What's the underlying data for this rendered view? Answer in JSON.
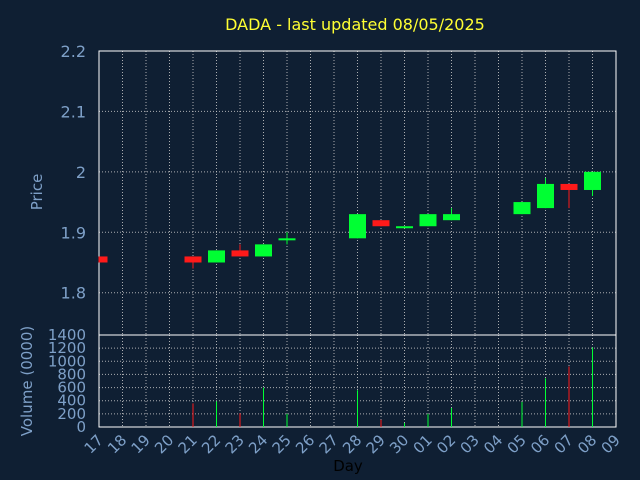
{
  "chart_data": {
    "type": "candlestick",
    "title": "DADA - last updated 08/05/2025",
    "xlabel": "Day",
    "price_panel": {
      "ylabel": "Price",
      "ylim": [
        1.73,
        2.2
      ],
      "yticks": [
        "2.2",
        "2.1",
        "2",
        "1.9",
        "1.8"
      ],
      "ytick_values": [
        2.2,
        2.1,
        2.0,
        1.9,
        1.8
      ],
      "grid": true
    },
    "volume_panel": {
      "ylabel": "Volume (0000)",
      "ylim": [
        0,
        1400
      ],
      "yticks": [
        "1400",
        "1200",
        "1000",
        "800",
        "600",
        "400",
        "200",
        "0"
      ],
      "ytick_values": [
        1400,
        1200,
        1000,
        800,
        600,
        400,
        200,
        0
      ],
      "grid": true
    },
    "x_ticks": [
      "17",
      "18",
      "19",
      "20",
      "21",
      "22",
      "23",
      "24",
      "25",
      "26",
      "27",
      "28",
      "29",
      "30",
      "01",
      "02",
      "03",
      "04",
      "05",
      "06",
      "07",
      "08",
      "09"
    ],
    "candles": [
      {
        "day": "17",
        "open": 1.86,
        "close": 1.85,
        "high": 1.86,
        "low": 1.85,
        "volume": 0
      },
      {
        "day": "21",
        "open": 1.86,
        "close": 1.85,
        "high": 1.86,
        "low": 1.84,
        "volume": 360
      },
      {
        "day": "22",
        "open": 1.85,
        "close": 1.87,
        "high": 1.87,
        "low": 1.85,
        "volume": 390
      },
      {
        "day": "23",
        "open": 1.87,
        "close": 1.86,
        "high": 1.88,
        "low": 1.86,
        "volume": 210
      },
      {
        "day": "24",
        "open": 1.86,
        "close": 1.88,
        "high": 1.88,
        "low": 1.86,
        "volume": 600
      },
      {
        "day": "25",
        "open": 1.89,
        "close": 1.89,
        "high": 1.9,
        "low": 1.88,
        "volume": 200
      },
      {
        "day": "28",
        "open": 1.89,
        "close": 1.93,
        "high": 1.93,
        "low": 1.89,
        "volume": 560
      },
      {
        "day": "29",
        "open": 1.92,
        "close": 1.91,
        "high": 1.92,
        "low": 1.91,
        "volume": 110
      },
      {
        "day": "30",
        "open": 1.91,
        "close": 1.91,
        "high": 1.91,
        "low": 1.91,
        "volume": 60
      },
      {
        "day": "01",
        "open": 1.91,
        "close": 1.93,
        "high": 1.93,
        "low": 1.91,
        "volume": 200
      },
      {
        "day": "02",
        "open": 1.92,
        "close": 1.93,
        "high": 1.94,
        "low": 1.92,
        "volume": 290
      },
      {
        "day": "05",
        "open": 1.93,
        "close": 1.95,
        "high": 1.95,
        "low": 1.93,
        "volume": 380
      },
      {
        "day": "06",
        "open": 1.94,
        "close": 1.98,
        "high": 1.99,
        "low": 1.94,
        "volume": 740
      },
      {
        "day": "07",
        "open": 1.98,
        "close": 1.97,
        "high": 1.98,
        "low": 1.94,
        "volume": 920
      },
      {
        "day": "08",
        "open": 1.97,
        "close": 2.0,
        "high": 2.0,
        "low": 1.96,
        "volume": 1210
      }
    ]
  },
  "colors": {
    "up": "#00ff33",
    "down": "#ff1a1a"
  }
}
